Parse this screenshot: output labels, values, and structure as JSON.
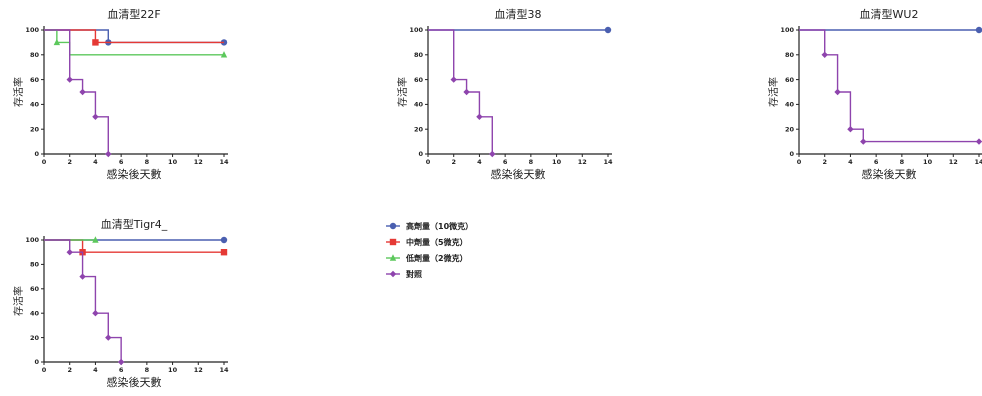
{
  "colors": {
    "high": "#4a5fb0",
    "medium": "#e53935",
    "low": "#5cc85c",
    "control": "#8e44ad",
    "axis": "#222222",
    "text": "#222222"
  },
  "legend": {
    "items": [
      {
        "label": "高劑量（10微克）",
        "color": "#4a5fb0",
        "marker": "circle"
      },
      {
        "label": "中劑量（5微克）",
        "color": "#e53935",
        "marker": "square"
      },
      {
        "label": "低劑量（2微克）",
        "color": "#5cc85c",
        "marker": "triangle"
      },
      {
        "label": "對照",
        "color": "#8e44ad",
        "marker": "diamond"
      }
    ]
  },
  "chart_data": [
    {
      "type": "line",
      "subtype": "kaplan-meier step",
      "title": "血清型22F",
      "xlabel": "感染後天數",
      "ylabel": "存活率",
      "xlim": [
        0,
        14
      ],
      "ylim": [
        0,
        100
      ],
      "xticks": [
        0,
        2,
        4,
        6,
        8,
        10,
        12,
        14
      ],
      "yticks": [
        0,
        20,
        40,
        60,
        80,
        100
      ],
      "series": [
        {
          "name": "高劑量（10微克）",
          "color": "#4a5fb0",
          "points": [
            [
              0,
              100
            ],
            [
              5,
              100
            ],
            [
              5,
              90
            ],
            [
              14,
              90
            ]
          ],
          "markers": [
            [
              5,
              90
            ],
            [
              14,
              90
            ]
          ]
        },
        {
          "name": "中劑量（5微克）",
          "color": "#e53935",
          "points": [
            [
              0,
              100
            ],
            [
              4,
              100
            ],
            [
              4,
              90
            ],
            [
              14,
              90
            ]
          ],
          "markers": [
            [
              4,
              90
            ]
          ]
        },
        {
          "name": "低劑量（2微克）",
          "color": "#5cc85c",
          "points": [
            [
              0,
              100
            ],
            [
              1,
              100
            ],
            [
              1,
              90
            ],
            [
              2,
              90
            ],
            [
              2,
              80
            ],
            [
              14,
              80
            ]
          ],
          "markers": [
            [
              1,
              90
            ],
            [
              14,
              80
            ]
          ]
        },
        {
          "name": "對照",
          "color": "#8e44ad",
          "points": [
            [
              0,
              100
            ],
            [
              2,
              100
            ],
            [
              2,
              60
            ],
            [
              3,
              60
            ],
            [
              3,
              50
            ],
            [
              4,
              50
            ],
            [
              4,
              30
            ],
            [
              5,
              30
            ],
            [
              5,
              0
            ]
          ],
          "markers": [
            [
              2,
              60
            ],
            [
              3,
              50
            ],
            [
              4,
              30
            ],
            [
              5,
              0
            ]
          ]
        }
      ]
    },
    {
      "type": "line",
      "subtype": "kaplan-meier step",
      "title": "血清型38",
      "xlabel": "感染後天數",
      "ylabel": "存活率",
      "xlim": [
        0,
        14
      ],
      "ylim": [
        0,
        100
      ],
      "xticks": [
        0,
        2,
        4,
        6,
        8,
        10,
        12,
        14
      ],
      "yticks": [
        0,
        20,
        40,
        60,
        80,
        100
      ],
      "series": [
        {
          "name": "高劑量（10微克）",
          "color": "#4a5fb0",
          "points": [
            [
              0,
              100
            ],
            [
              14,
              100
            ]
          ],
          "markers": [
            [
              14,
              100
            ]
          ]
        },
        {
          "name": "對照",
          "color": "#8e44ad",
          "points": [
            [
              0,
              100
            ],
            [
              2,
              100
            ],
            [
              2,
              60
            ],
            [
              3,
              60
            ],
            [
              3,
              50
            ],
            [
              4,
              50
            ],
            [
              4,
              30
            ],
            [
              5,
              30
            ],
            [
              5,
              0
            ]
          ],
          "markers": [
            [
              2,
              60
            ],
            [
              3,
              50
            ],
            [
              4,
              30
            ],
            [
              5,
              0
            ]
          ]
        }
      ]
    },
    {
      "type": "line",
      "subtype": "kaplan-meier step",
      "title": "血清型WU2",
      "xlabel": "感染後天數",
      "ylabel": "存活率",
      "xlim": [
        0,
        14
      ],
      "ylim": [
        0,
        100
      ],
      "xticks": [
        0,
        2,
        4,
        6,
        8,
        10,
        12,
        14
      ],
      "yticks": [
        0,
        20,
        40,
        60,
        80,
        100
      ],
      "series": [
        {
          "name": "高劑量（10微克）",
          "color": "#4a5fb0",
          "points": [
            [
              0,
              100
            ],
            [
              14,
              100
            ]
          ],
          "markers": [
            [
              14,
              100
            ]
          ]
        },
        {
          "name": "對照",
          "color": "#8e44ad",
          "points": [
            [
              0,
              100
            ],
            [
              2,
              100
            ],
            [
              2,
              80
            ],
            [
              3,
              80
            ],
            [
              3,
              50
            ],
            [
              4,
              50
            ],
            [
              4,
              20
            ],
            [
              5,
              20
            ],
            [
              5,
              10
            ],
            [
              14,
              10
            ]
          ],
          "markers": [
            [
              2,
              80
            ],
            [
              3,
              50
            ],
            [
              4,
              20
            ],
            [
              5,
              10
            ],
            [
              14,
              10
            ]
          ]
        }
      ]
    },
    {
      "type": "line",
      "subtype": "kaplan-meier step",
      "title": "血清型Tigr4_",
      "xlabel": "感染後天數",
      "ylabel": "存活率",
      "xlim": [
        0,
        14
      ],
      "ylim": [
        0,
        100
      ],
      "xticks": [
        0,
        2,
        4,
        6,
        8,
        10,
        12,
        14
      ],
      "yticks": [
        0,
        20,
        40,
        60,
        80,
        100
      ],
      "series": [
        {
          "name": "高劑量（10微克）",
          "color": "#4a5fb0",
          "points": [
            [
              0,
              100
            ],
            [
              14,
              100
            ]
          ],
          "markers": [
            [
              14,
              100
            ]
          ]
        },
        {
          "name": "中劑量（5微克）",
          "color": "#e53935",
          "points": [
            [
              0,
              100
            ],
            [
              3,
              100
            ],
            [
              3,
              90
            ],
            [
              14,
              90
            ]
          ],
          "markers": [
            [
              3,
              90
            ],
            [
              14,
              90
            ]
          ]
        },
        {
          "name": "低劑量（2微克）",
          "color": "#5cc85c",
          "points": [
            [
              0,
              100
            ],
            [
              4,
              100
            ]
          ],
          "markers": [
            [
              4,
              100
            ]
          ]
        },
        {
          "name": "對照",
          "color": "#8e44ad",
          "points": [
            [
              0,
              100
            ],
            [
              2,
              100
            ],
            [
              2,
              90
            ],
            [
              3,
              90
            ],
            [
              3,
              70
            ],
            [
              4,
              70
            ],
            [
              4,
              40
            ],
            [
              5,
              40
            ],
            [
              5,
              20
            ],
            [
              6,
              20
            ],
            [
              6,
              0
            ]
          ],
          "markers": [
            [
              2,
              90
            ],
            [
              3,
              70
            ],
            [
              4,
              40
            ],
            [
              5,
              20
            ],
            [
              6,
              0
            ]
          ]
        }
      ]
    }
  ]
}
